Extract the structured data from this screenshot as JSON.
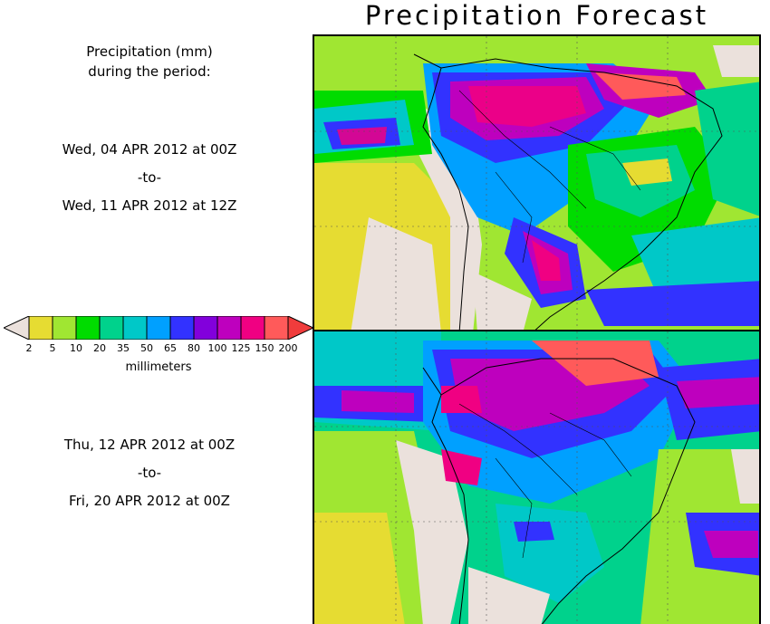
{
  "title": "Precipitation Forecast",
  "description": {
    "line1": "Precipitation (mm)",
    "line2": "during the period:"
  },
  "periods": [
    {
      "start": "Wed, 04 APR 2012 at 00Z",
      "sep": "-to-",
      "end": "Wed, 11 APR 2012 at 12Z"
    },
    {
      "start": "Thu, 12 APR 2012 at 00Z",
      "sep": "-to-",
      "end": "Fri, 20 APR 2012 at 00Z"
    }
  ],
  "legend": {
    "units": "millimeters",
    "ticks": [
      "2",
      "5",
      "10",
      "20",
      "35",
      "50",
      "65",
      "80",
      "100",
      "125",
      "150",
      "200"
    ],
    "colors": [
      "#ebe1dc",
      "#e6dc32",
      "#a0e632",
      "#00dc00",
      "#00d28c",
      "#00c8c8",
      "#00a0ff",
      "#3232ff",
      "#8200dc",
      "#be00be",
      "#f00082",
      "#ff5a5a",
      "#f03c3c"
    ]
  },
  "palette": {
    "background_low": "#a0e632",
    "land_dry": "#ebe1dc",
    "frame": "#000000"
  }
}
